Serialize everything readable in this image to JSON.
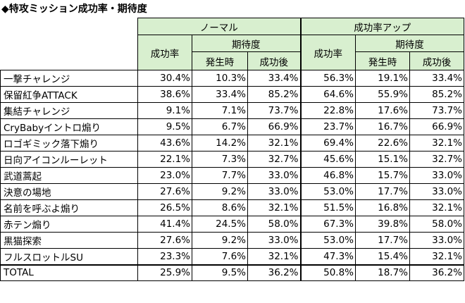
{
  "title": "◆特攻ミッション成功率・期待度",
  "headers": {
    "normal": "ノーマル",
    "boost": "成功率アップ",
    "success_rate": "成功率",
    "expectation": "期待度",
    "at_start": "発生時",
    "after_success": "成功後"
  },
  "rows": [
    {
      "name": "一撃チャレンジ",
      "values": [
        "30.4%",
        "10.3%",
        "33.4%",
        "56.3%",
        "19.1%",
        "33.4%"
      ]
    },
    {
      "name": "保留紅争ATTACK",
      "values": [
        "38.6%",
        "33.4%",
        "85.2%",
        "64.6%",
        "55.9%",
        "85.2%"
      ]
    },
    {
      "name": "集結チャレンジ",
      "values": [
        "9.1%",
        "7.1%",
        "73.7%",
        "22.8%",
        "17.6%",
        "73.7%"
      ]
    },
    {
      "name": "CryBabyイントロ煽り",
      "values": [
        "9.5%",
        "6.7%",
        "66.9%",
        "23.7%",
        "16.7%",
        "66.9%"
      ]
    },
    {
      "name": "ロゴギミック落下煽り",
      "values": [
        "43.6%",
        "14.2%",
        "32.1%",
        "69.4%",
        "22.6%",
        "32.1%"
      ]
    },
    {
      "name": "日向アイコンルーレット",
      "values": [
        "22.1%",
        "7.3%",
        "32.7%",
        "45.6%",
        "15.1%",
        "32.7%"
      ]
    },
    {
      "name": "武道蒿起",
      "values": [
        "23.0%",
        "7.7%",
        "33.0%",
        "46.8%",
        "15.7%",
        "33.0%"
      ]
    },
    {
      "name": "決意の場地",
      "values": [
        "27.6%",
        "9.2%",
        "33.0%",
        "53.0%",
        "17.7%",
        "33.0%"
      ]
    },
    {
      "name": "名前を呼ぶよ煽り",
      "values": [
        "26.5%",
        "8.6%",
        "32.1%",
        "51.5%",
        "16.8%",
        "32.1%"
      ]
    },
    {
      "name": "赤テン煽り",
      "values": [
        "41.4%",
        "24.5%",
        "58.0%",
        "67.3%",
        "39.8%",
        "58.0%"
      ]
    },
    {
      "name": "黒猫探索",
      "values": [
        "27.6%",
        "9.2%",
        "33.0%",
        "53.0%",
        "17.7%",
        "33.0%"
      ]
    },
    {
      "name": "フルスロットルSU",
      "values": [
        "23.3%",
        "7.6%",
        "32.1%",
        "47.3%",
        "15.4%",
        "32.1%"
      ]
    }
  ],
  "total": {
    "name": "TOTAL",
    "values": [
      "25.9%",
      "9.5%",
      "36.2%",
      "50.8%",
      "18.7%",
      "36.2%"
    ]
  }
}
